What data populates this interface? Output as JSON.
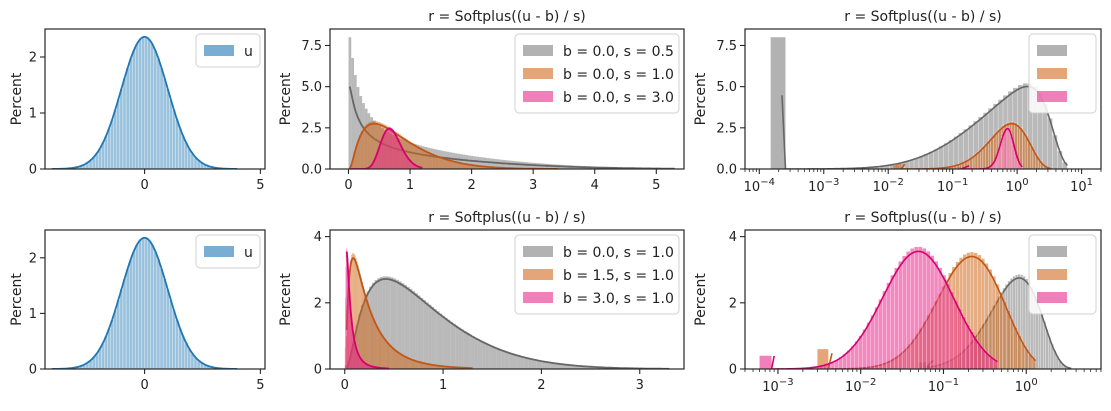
{
  "chart_data": [
    {
      "id": "p11",
      "type": "histogram+kde",
      "xscale": "linear",
      "title": "",
      "xlabel": "",
      "ylabel": "Percent",
      "xlim": [
        -4.3,
        5.2
      ],
      "ylim": [
        0,
        2.5
      ],
      "xticks": [
        {
          "v": 0,
          "t": "0"
        },
        {
          "v": 5,
          "t": "5"
        }
      ],
      "yticks": [
        {
          "v": 0,
          "t": "0"
        },
        {
          "v": 1,
          "t": "1"
        },
        {
          "v": 2,
          "t": "2"
        }
      ],
      "legend": {
        "position": "top-right",
        "show_labels": true
      },
      "series": [
        {
          "name": "u",
          "color": "#1f77b4",
          "dist": "normal",
          "mu": 0,
          "sd": 1,
          "peak": 2.36
        }
      ]
    },
    {
      "id": "p12",
      "type": "histogram+kde",
      "xscale": "linear",
      "title": "r = Softplus((u - b) / s)",
      "xlabel": "",
      "ylabel": "Percent",
      "xlim": [
        -0.3,
        5.45
      ],
      "ylim": [
        0,
        8.5
      ],
      "xticks": [
        {
          "v": 0,
          "t": "0"
        },
        {
          "v": 1,
          "t": "1"
        },
        {
          "v": 2,
          "t": "2"
        },
        {
          "v": 3,
          "t": "3"
        },
        {
          "v": 4,
          "t": "4"
        },
        {
          "v": 5,
          "t": "5"
        }
      ],
      "yticks": [
        {
          "v": 0,
          "t": "0.0"
        },
        {
          "v": 2.5,
          "t": "2.5"
        },
        {
          "v": 5,
          "t": "5.0"
        },
        {
          "v": 7.5,
          "t": "7.5"
        }
      ],
      "legend": {
        "position": "top-right",
        "show_labels": true
      },
      "series": [
        {
          "name": "b = 0.0, s = 0.5",
          "color": "#7f7f7f",
          "line": "#666666",
          "b": 0.0,
          "s": 0.5,
          "hist_max": 8.0,
          "kde_peak": 5.0,
          "xmax": 5.3
        },
        {
          "name": "b = 0.0, s = 1.0",
          "color": "#d2691e",
          "line": "#c0571a",
          "b": 0.0,
          "s": 1.0,
          "hist_max": 2.9,
          "kde_peak": 2.75,
          "xmax": 3.4
        },
        {
          "name": "b = 0.0, s = 3.0",
          "color": "#e7298a",
          "line": "#d6006f",
          "b": 0.0,
          "s": 3.0,
          "hist_max": 2.55,
          "kde_peak": 2.45,
          "xmax": 1.2
        }
      ]
    },
    {
      "id": "p13",
      "type": "histogram+kde",
      "xscale": "log",
      "title": "r = Softplus((u - b) / s)",
      "xlabel": "",
      "ylabel": "Percent",
      "xlim": [
        6e-05,
        20
      ],
      "ylim": [
        0,
        8.5
      ],
      "xticks": [
        {
          "v": 0.0001,
          "t": "10^-4"
        },
        {
          "v": 0.001,
          "t": "10^-3"
        },
        {
          "v": 0.01,
          "t": "10^-2"
        },
        {
          "v": 0.1,
          "t": "10^-1"
        },
        {
          "v": 1,
          "t": "10^0"
        },
        {
          "v": 10,
          "t": "10^1"
        }
      ],
      "yticks": [
        {
          "v": 0,
          "t": "0.0"
        },
        {
          "v": 2.5,
          "t": "2.5"
        },
        {
          "v": 5,
          "t": "5.0"
        },
        {
          "v": 7.5,
          "t": "7.5"
        }
      ],
      "legend": {
        "position": "top-right",
        "show_labels": false
      },
      "series": [
        {
          "name": "",
          "color": "#7f7f7f",
          "line": "#666666",
          "b": 0.0,
          "s": 0.5,
          "xmin": 0.00015,
          "xmax": 6.0,
          "first_bin_height": 8.0,
          "kde_peak": 5.0
        },
        {
          "name": "",
          "color": "#d2691e",
          "line": "#c0571a",
          "b": 0.0,
          "s": 1.0,
          "xmin": 0.012,
          "xmax": 3.4,
          "first_bin_height": 0.3,
          "kde_peak": 2.75
        },
        {
          "name": "",
          "color": "#e7298a",
          "line": "#d6006f",
          "b": 0.0,
          "s": 3.0,
          "xmin": 0.12,
          "xmax": 1.2,
          "first_bin_height": 0.1,
          "kde_peak": 2.45
        }
      ]
    },
    {
      "id": "p21",
      "type": "histogram+kde",
      "xscale": "linear",
      "title": "",
      "xlabel": "",
      "ylabel": "Percent",
      "xlim": [
        -4.3,
        5.2
      ],
      "ylim": [
        0,
        2.5
      ],
      "xticks": [
        {
          "v": 0,
          "t": "0"
        },
        {
          "v": 5,
          "t": "5"
        }
      ],
      "yticks": [
        {
          "v": 0,
          "t": "0"
        },
        {
          "v": 1,
          "t": "1"
        },
        {
          "v": 2,
          "t": "2"
        }
      ],
      "legend": {
        "position": "top-right",
        "show_labels": true
      },
      "series": [
        {
          "name": "u",
          "color": "#1f77b4",
          "dist": "normal",
          "mu": 0,
          "sd": 1,
          "peak": 2.36
        }
      ]
    },
    {
      "id": "p22",
      "type": "histogram+kde",
      "xscale": "linear",
      "title": "r = Softplus((u - b) / s)",
      "xlabel": "",
      "ylabel": "Percent",
      "xlim": [
        -0.15,
        3.45
      ],
      "ylim": [
        0,
        4.2
      ],
      "xticks": [
        {
          "v": 0,
          "t": "0"
        },
        {
          "v": 1,
          "t": "1"
        },
        {
          "v": 2,
          "t": "2"
        },
        {
          "v": 3,
          "t": "3"
        }
      ],
      "yticks": [
        {
          "v": 0,
          "t": "0"
        },
        {
          "v": 2,
          "t": "2"
        },
        {
          "v": 4,
          "t": "4"
        }
      ],
      "legend": {
        "position": "top-right",
        "show_labels": true
      },
      "series": [
        {
          "name": "b = 0.0, s = 1.0",
          "color": "#7f7f7f",
          "line": "#666666",
          "b": 0.0,
          "s": 1.0,
          "hist_max": 2.8,
          "kde_peak": 2.72,
          "xmax": 3.3
        },
        {
          "name": "b = 1.5, s = 1.0",
          "color": "#d2691e",
          "line": "#c0571a",
          "b": 1.5,
          "s": 1.0,
          "hist_max": 3.5,
          "kde_peak": 3.35,
          "xmax": 1.3
        },
        {
          "name": "b = 3.0, s = 1.0",
          "color": "#e7298a",
          "line": "#d6006f",
          "b": 3.0,
          "s": 1.0,
          "hist_max": 3.65,
          "kde_peak": 3.55,
          "xmax": 0.45
        }
      ]
    },
    {
      "id": "p23",
      "type": "histogram+kde",
      "xscale": "log",
      "title": "r = Softplus((u - b) / s)",
      "xlabel": "",
      "ylabel": "Percent",
      "xlim": [
        0.0004,
        8
      ],
      "ylim": [
        0,
        4.2
      ],
      "xticks": [
        {
          "v": 0.001,
          "t": "10^-3"
        },
        {
          "v": 0.01,
          "t": "10^-2"
        },
        {
          "v": 0.1,
          "t": "10^-1"
        },
        {
          "v": 1,
          "t": "10^0"
        }
      ],
      "yticks": [
        {
          "v": 0,
          "t": "0"
        },
        {
          "v": 2,
          "t": "2"
        },
        {
          "v": 4,
          "t": "4"
        }
      ],
      "legend": {
        "position": "top-right",
        "show_labels": false
      },
      "series": [
        {
          "name": "",
          "color": "#7f7f7f",
          "line": "#666666",
          "b": 0.0,
          "s": 1.0,
          "xmin": 0.05,
          "xmax": 3.5,
          "first_bin_height": 0.2,
          "kde_peak": 2.75
        },
        {
          "name": "",
          "color": "#d2691e",
          "line": "#c0571a",
          "b": 1.5,
          "s": 1.0,
          "xmin": 0.003,
          "xmax": 1.3,
          "first_bin_height": 0.6,
          "kde_peak": 3.4
        },
        {
          "name": "",
          "color": "#e7298a",
          "line": "#d6006f",
          "b": 3.0,
          "s": 1.0,
          "xmin": 0.0006,
          "xmax": 0.45,
          "first_bin_height": 0.4,
          "kde_peak": 3.55
        }
      ]
    }
  ]
}
